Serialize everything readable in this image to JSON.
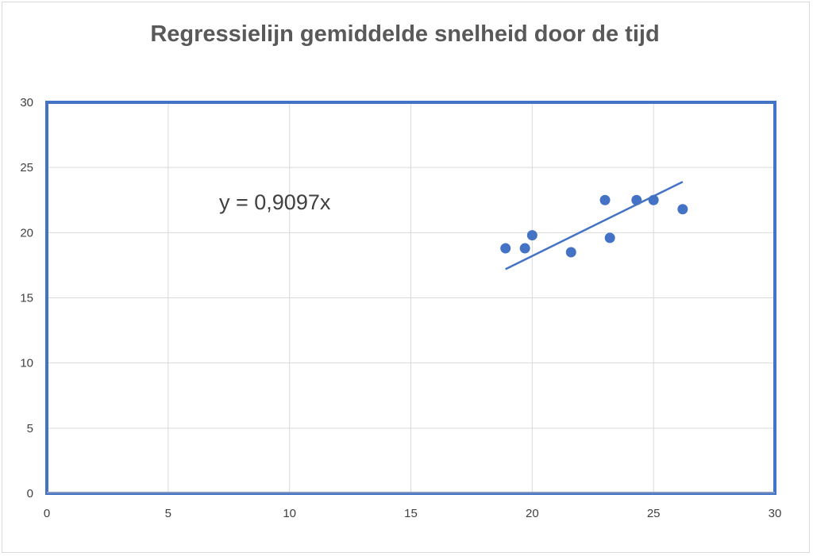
{
  "chart_data": {
    "type": "scatter",
    "title": "Regressielijn gemiddelde snelheid door de tijd",
    "xlabel": "",
    "ylabel": "",
    "xlim": [
      0,
      30
    ],
    "ylim": [
      0,
      30
    ],
    "x_ticks": [
      "0",
      "5",
      "10",
      "15",
      "20",
      "25",
      "30"
    ],
    "y_ticks": [
      "0",
      "5",
      "10",
      "15",
      "20",
      "25",
      "30"
    ],
    "grid": true,
    "legend": "none",
    "series": [
      {
        "points": [
          {
            "x": 18.9,
            "y": 18.8
          },
          {
            "x": 19.7,
            "y": 18.8
          },
          {
            "x": 20.0,
            "y": 19.8
          },
          {
            "x": 21.6,
            "y": 18.5
          },
          {
            "x": 23.0,
            "y": 22.5
          },
          {
            "x": 23.2,
            "y": 19.6
          },
          {
            "x": 24.3,
            "y": 22.5
          },
          {
            "x": 25.0,
            "y": 22.5
          },
          {
            "x": 26.2,
            "y": 21.8
          }
        ]
      }
    ],
    "trendline": {
      "x_start": 18.9,
      "y_start": 17.2,
      "x_end": 26.2,
      "y_end": 23.9
    },
    "annotation": "y = 0,9097x",
    "colors": {
      "series": "#4472c4",
      "plot_border": "#4472c4",
      "grid": "#d9d9d9"
    }
  }
}
